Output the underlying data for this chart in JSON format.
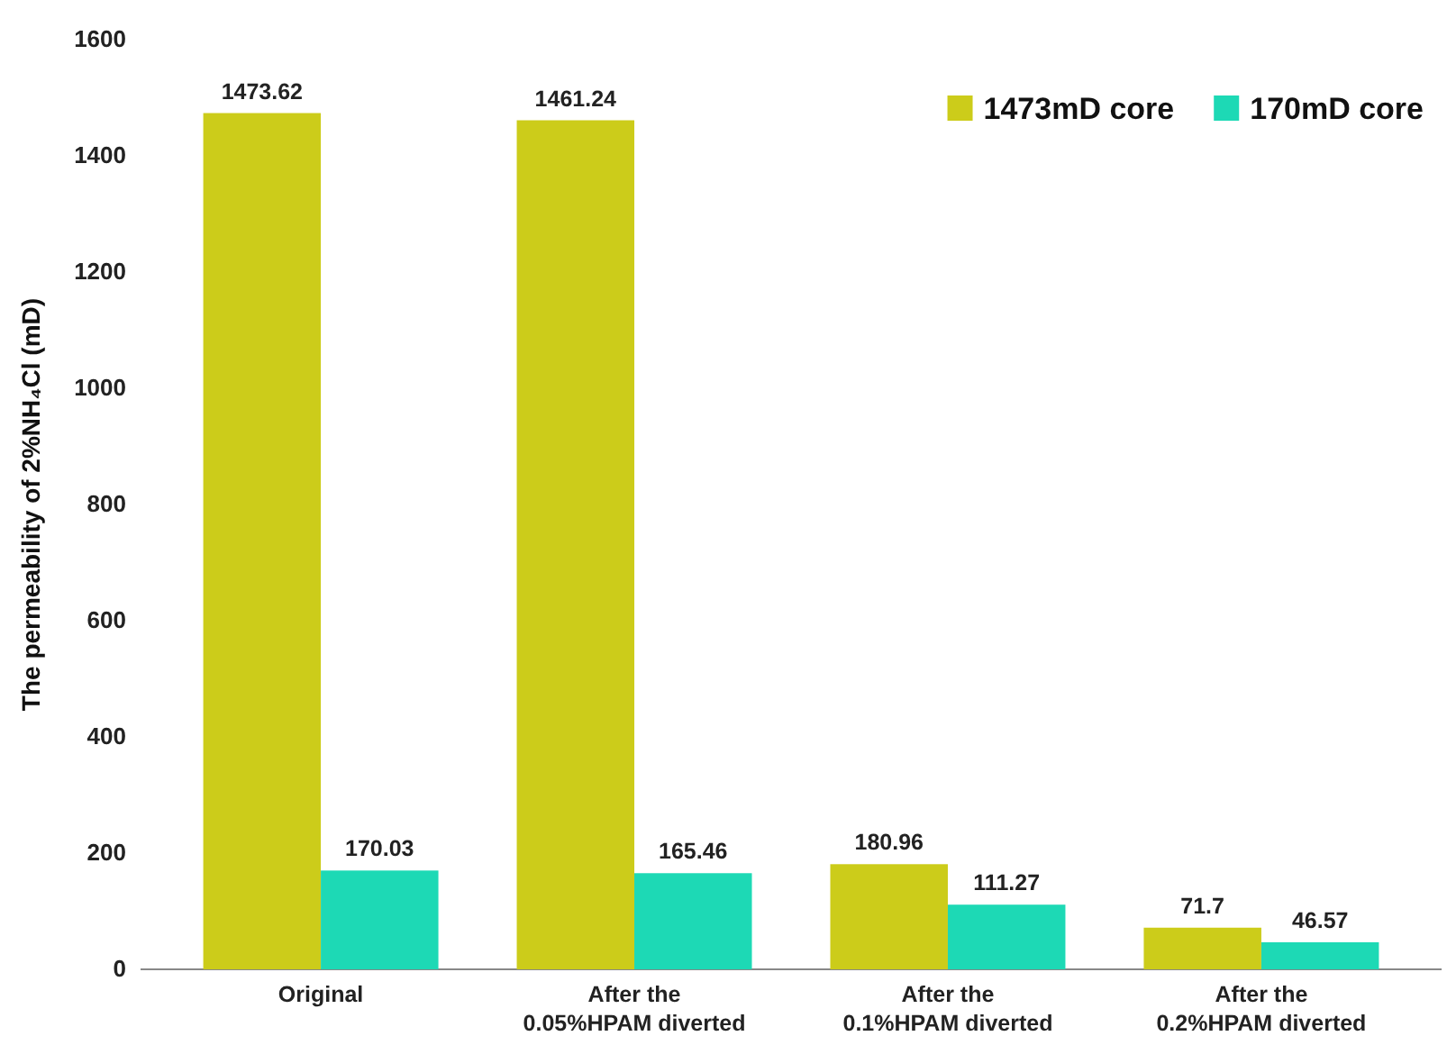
{
  "chart_data": {
    "type": "bar",
    "ylabel": "The permeability of 2%NH₄Cl (mD)",
    "categories": [
      "Original",
      "After the\n0.05%HPAM diverted",
      "After the\n0.1%HPAM diverted",
      "After the\n0.2%HPAM diverted"
    ],
    "series": [
      {
        "name": "1473mD core",
        "color": "#cccc1a",
        "values": [
          1473.62,
          1461.24,
          180.96,
          71.7
        ]
      },
      {
        "name": "170mD core",
        "color": "#1dd9b5",
        "values": [
          170.03,
          165.46,
          111.27,
          46.57
        ]
      }
    ],
    "ylim": [
      0,
      1600
    ],
    "yticks": [
      0,
      200,
      400,
      600,
      800,
      1000,
      1200,
      1400,
      1600
    ],
    "data_labels": true,
    "legend": "top right",
    "grid": false
  }
}
